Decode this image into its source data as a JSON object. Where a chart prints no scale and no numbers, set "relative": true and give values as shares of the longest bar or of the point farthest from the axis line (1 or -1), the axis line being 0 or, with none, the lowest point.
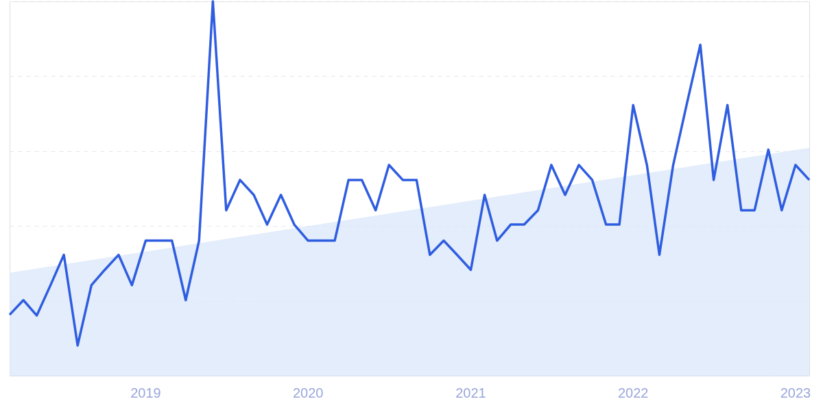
{
  "chart_data": {
    "type": "line",
    "relative": true,
    "grid": "y",
    "line_style": "solid",
    "marker": "none",
    "xlim": [
      "2018-03",
      "2023-02"
    ],
    "xticks": [
      {
        "value": "2019-01",
        "label": "2019"
      },
      {
        "value": "2020-01",
        "label": "2020"
      },
      {
        "value": "2021-01",
        "label": "2021"
      },
      {
        "value": "2022-01",
        "label": "2022"
      },
      {
        "value": "2023-01",
        "label": "2023"
      }
    ],
    "series": [
      {
        "type": "area",
        "color": "#dce9fa",
        "x": [
          "2018-03",
          "2023-02"
        ],
        "values": [
          0.275,
          0.609
        ]
      },
      {
        "color": "#2f5de0",
        "x": [
          "2018-03",
          "2018-04",
          "2018-05",
          "2018-06",
          "2018-07",
          "2018-08",
          "2018-09",
          "2018-10",
          "2018-11",
          "2018-12",
          "2019-01",
          "2019-02",
          "2019-03",
          "2019-04",
          "2019-05",
          "2019-06",
          "2019-07",
          "2019-08",
          "2019-09",
          "2019-10",
          "2019-11",
          "2019-12",
          "2020-01",
          "2020-02",
          "2020-03",
          "2020-04",
          "2020-05",
          "2020-06",
          "2020-07",
          "2020-08",
          "2020-09",
          "2020-10",
          "2020-11",
          "2020-12",
          "2021-01",
          "2021-02",
          "2021-03",
          "2021-04",
          "2021-05",
          "2021-06",
          "2021-07",
          "2021-08",
          "2021-09",
          "2021-10",
          "2021-11",
          "2021-12",
          "2022-01",
          "2022-02",
          "2022-03",
          "2022-04",
          "2022-05",
          "2022-06",
          "2022-07",
          "2022-08",
          "2022-09",
          "2022-10",
          "2022-11",
          "2022-12",
          "2023-01",
          "2023-02"
        ],
        "values": [
          0.163,
          0.202,
          0.161,
          0.242,
          0.323,
          0.081,
          0.242,
          0.283,
          0.323,
          0.242,
          0.361,
          0.361,
          0.361,
          0.202,
          0.361,
          1.0,
          0.442,
          0.523,
          0.483,
          0.404,
          0.483,
          0.404,
          0.361,
          0.361,
          0.361,
          0.523,
          0.523,
          0.442,
          0.563,
          0.523,
          0.523,
          0.323,
          0.361,
          0.323,
          0.283,
          0.483,
          0.361,
          0.404,
          0.404,
          0.442,
          0.563,
          0.483,
          0.563,
          0.523,
          0.404,
          0.404,
          0.723,
          0.563,
          0.323,
          0.563,
          0.723,
          0.884,
          0.523,
          0.723,
          0.442,
          0.442,
          0.604,
          0.442,
          0.563,
          0.523
        ]
      }
    ]
  }
}
